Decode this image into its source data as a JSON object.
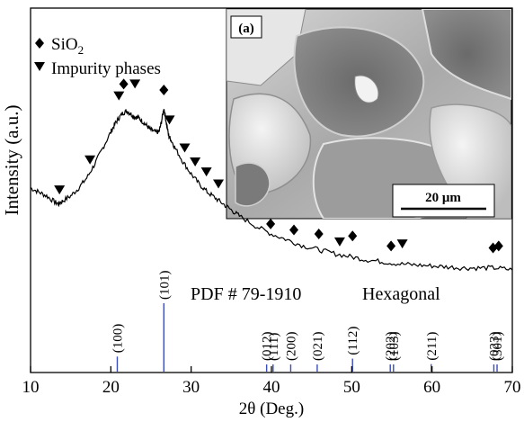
{
  "chart_data": {
    "type": "line",
    "xlabel": "2θ (Deg.)",
    "ylabel": "Intensity (a.u.)",
    "xlim": [
      10,
      70
    ],
    "xticks": [
      10,
      20,
      30,
      40,
      50,
      60,
      70
    ],
    "legend": {
      "placement": "top-left",
      "entries": [
        {
          "marker": "diamond",
          "label_main": "SiO",
          "label_sub": "2"
        },
        {
          "marker": "triangle-down",
          "label_main": "Impurity phases",
          "label_sub": ""
        }
      ]
    },
    "pattern": {
      "x": [
        10,
        11,
        12,
        13,
        13.5,
        14,
        15,
        16,
        17,
        18,
        19,
        20,
        20.5,
        21,
        21.5,
        22,
        22.5,
        23,
        23.5,
        24,
        24.5,
        25,
        25.5,
        26,
        26.3,
        26.6,
        26.9,
        27.2,
        27.5,
        28,
        29,
        30,
        31,
        32,
        33,
        34,
        35,
        36,
        38,
        40,
        42,
        44,
        46,
        48,
        50,
        52,
        54,
        56,
        58,
        60,
        62,
        64,
        66,
        68,
        70
      ],
      "y": [
        0.6,
        0.58,
        0.56,
        0.53,
        0.52,
        0.535,
        0.56,
        0.6,
        0.65,
        0.72,
        0.8,
        0.88,
        0.92,
        0.95,
        0.975,
        0.985,
        0.97,
        0.955,
        0.95,
        0.93,
        0.91,
        0.89,
        0.88,
        0.88,
        0.93,
        1.0,
        0.93,
        0.86,
        0.84,
        0.8,
        0.73,
        0.67,
        0.62,
        0.58,
        0.55,
        0.52,
        0.49,
        0.46,
        0.41,
        0.37,
        0.34,
        0.31,
        0.29,
        0.27,
        0.255,
        0.24,
        0.23,
        0.22,
        0.215,
        0.21,
        0.205,
        0.2,
        0.2,
        0.2,
        0.19
      ]
    },
    "markers": [
      {
        "x": 13.6,
        "symbol": "triangle-down",
        "level": 0.59
      },
      {
        "x": 17.4,
        "symbol": "triangle-down",
        "level": 0.74
      },
      {
        "x": 21.0,
        "symbol": "triangle-down",
        "level": 1.06
      },
      {
        "x": 21.6,
        "symbol": "diamond",
        "level": 1.12
      },
      {
        "x": 23.0,
        "symbol": "triangle-down",
        "level": 1.12
      },
      {
        "x": 26.6,
        "symbol": "diamond",
        "level": 1.09
      },
      {
        "x": 27.3,
        "symbol": "triangle-down",
        "level": 0.94
      },
      {
        "x": 29.2,
        "symbol": "triangle-down",
        "level": 0.8
      },
      {
        "x": 30.5,
        "symbol": "triangle-down",
        "level": 0.73
      },
      {
        "x": 31.9,
        "symbol": "triangle-down",
        "level": 0.68
      },
      {
        "x": 33.4,
        "symbol": "triangle-down",
        "level": 0.62
      },
      {
        "x": 39.9,
        "symbol": "diamond",
        "level": 0.42
      },
      {
        "x": 42.8,
        "symbol": "diamond",
        "level": 0.39
      },
      {
        "x": 45.9,
        "symbol": "diamond",
        "level": 0.37
      },
      {
        "x": 48.5,
        "symbol": "triangle-down",
        "level": 0.33
      },
      {
        "x": 50.1,
        "symbol": "diamond",
        "level": 0.36
      },
      {
        "x": 54.9,
        "symbol": "diamond",
        "level": 0.31
      },
      {
        "x": 56.3,
        "symbol": "triangle-down",
        "level": 0.32
      },
      {
        "x": 67.6,
        "symbol": "diamond",
        "level": 0.3
      },
      {
        "x": 68.3,
        "symbol": "diamond",
        "level": 0.31
      }
    ],
    "reference": {
      "label": "PDF # 79-1910",
      "system": "Hexagonal",
      "line_color": "#3b4dbb",
      "peaks": [
        {
          "x": 20.8,
          "hkl": "(100)",
          "intensity": 0.22
        },
        {
          "x": 26.6,
          "hkl": "(101)",
          "intensity": 1.0
        },
        {
          "x": 39.4,
          "hkl": "(012)",
          "intensity": 0.09
        },
        {
          "x": 40.2,
          "hkl": "(111)",
          "intensity": 0.06
        },
        {
          "x": 42.4,
          "hkl": "(200)",
          "intensity": 0.07
        },
        {
          "x": 45.7,
          "hkl": "(021)",
          "intensity": 0.05
        },
        {
          "x": 50.1,
          "hkl": "(112)",
          "intensity": 0.19
        },
        {
          "x": 54.8,
          "hkl": "(202)",
          "intensity": 0.05
        },
        {
          "x": 55.2,
          "hkl": "(103)",
          "intensity": 0.04
        },
        {
          "x": 59.9,
          "hkl": "(211)",
          "intensity": 0.11
        },
        {
          "x": 67.7,
          "hkl": "(023)",
          "intensity": 0.06
        },
        {
          "x": 68.1,
          "hkl": "(301)",
          "intensity": 0.07
        }
      ]
    },
    "inset": {
      "panel_label": "(a)",
      "scale_bar": "20 μm",
      "image_kind": "SEM micrograph, grayscale"
    }
  }
}
